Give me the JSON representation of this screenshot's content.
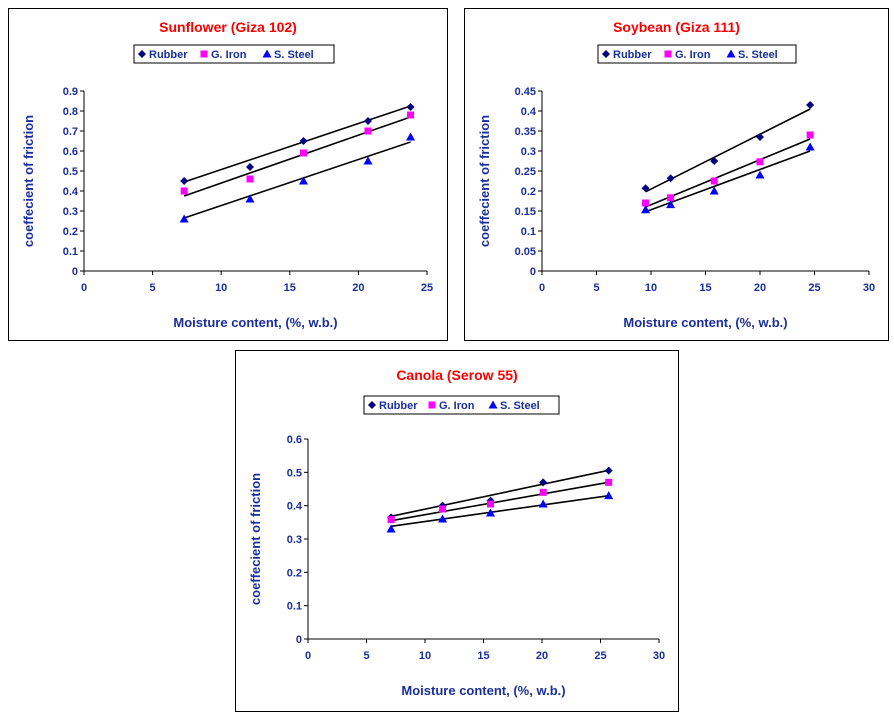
{
  "colors": {
    "rubber": "#000080",
    "iron": "#ff00ff",
    "steel": "#0000ff",
    "title": "#ff0000",
    "axis": "#1a2f9c",
    "fit": "#000000"
  },
  "chart_data": [
    {
      "type": "scatter",
      "title": "Sunflower (Giza 102)",
      "xlabel": "Moisture content, (%, w.b.)",
      "ylabel": "coeffecient of friction",
      "xlim": [
        0,
        25
      ],
      "ylim": [
        0,
        0.9
      ],
      "xticks": [
        "0",
        "5",
        "10",
        "15",
        "20",
        "25"
      ],
      "yticks": [
        "0",
        "0.1",
        "0.2",
        "0.3",
        "0.4",
        "0.5",
        "0.6",
        "0.7",
        "0.8",
        "0.9"
      ],
      "series": [
        {
          "name": "Rubber",
          "x": [
            7.3,
            12.1,
            16.0,
            20.7,
            23.8
          ],
          "y": [
            0.45,
            0.52,
            0.65,
            0.75,
            0.82
          ],
          "fit": [
            [
              7.3,
              0.445
            ],
            [
              23.8,
              0.825
            ]
          ]
        },
        {
          "name": "G. Iron",
          "x": [
            7.3,
            12.1,
            16.0,
            20.7,
            23.8
          ],
          "y": [
            0.4,
            0.46,
            0.59,
            0.7,
            0.78
          ],
          "fit": [
            [
              7.3,
              0.375
            ],
            [
              23.8,
              0.77
            ]
          ]
        },
        {
          "name": "S. Steel",
          "x": [
            7.3,
            12.1,
            16.0,
            20.7,
            23.8
          ],
          "y": [
            0.26,
            0.36,
            0.45,
            0.55,
            0.67
          ],
          "fit": [
            [
              7.3,
              0.265
            ],
            [
              23.8,
              0.645
            ]
          ]
        }
      ]
    },
    {
      "type": "scatter",
      "title": "Soybean (Giza 111)",
      "xlabel": "Moisture content, (%, w.b.)",
      "ylabel": "coeffecient of friction",
      "xlim": [
        0,
        30
      ],
      "ylim": [
        0,
        0.45
      ],
      "xticks": [
        "0",
        "5",
        "10",
        "15",
        "20",
        "25",
        "30"
      ],
      "yticks": [
        "0",
        "0.05",
        "0.1",
        "0.15",
        "0.2",
        "0.25",
        "0.3",
        "0.35",
        "0.4",
        "0.45"
      ],
      "series": [
        {
          "name": "Rubber",
          "x": [
            9.5,
            11.8,
            15.8,
            20.0,
            24.6
          ],
          "y": [
            0.207,
            0.232,
            0.275,
            0.335,
            0.415
          ],
          "fit": [
            [
              9.5,
              0.198
            ],
            [
              24.6,
              0.405
            ]
          ]
        },
        {
          "name": "G. Iron",
          "x": [
            9.5,
            11.8,
            15.8,
            20.0,
            24.6
          ],
          "y": [
            0.17,
            0.183,
            0.225,
            0.273,
            0.34
          ],
          "fit": [
            [
              9.5,
              0.16
            ],
            [
              24.6,
              0.33
            ]
          ]
        },
        {
          "name": "S. Steel",
          "x": [
            9.5,
            11.8,
            15.8,
            20.0,
            24.6
          ],
          "y": [
            0.153,
            0.166,
            0.2,
            0.24,
            0.31
          ],
          "fit": [
            [
              9.5,
              0.148
            ],
            [
              24.6,
              0.3
            ]
          ]
        }
      ]
    },
    {
      "type": "scatter",
      "title": "Canola (Serow 55)",
      "xlabel": "Moisture content, (%, w.b.)",
      "ylabel": "coeffecient of friction",
      "xlim": [
        0,
        30
      ],
      "ylim": [
        0,
        0.6
      ],
      "xticks": [
        "0",
        "5",
        "10",
        "15",
        "20",
        "25",
        "30"
      ],
      "yticks": [
        "0",
        "0.1",
        "0.2",
        "0.3",
        "0.4",
        "0.5",
        "0.6"
      ],
      "series": [
        {
          "name": "Rubber",
          "x": [
            7.1,
            11.5,
            15.6,
            20.1,
            25.7
          ],
          "y": [
            0.365,
            0.4,
            0.415,
            0.47,
            0.505
          ],
          "fit": [
            [
              7.1,
              0.368
            ],
            [
              25.7,
              0.506
            ]
          ]
        },
        {
          "name": "G. Iron",
          "x": [
            7.1,
            11.5,
            15.6,
            20.1,
            25.7
          ],
          "y": [
            0.358,
            0.39,
            0.405,
            0.44,
            0.47
          ],
          "fit": [
            [
              7.1,
              0.355
            ],
            [
              25.7,
              0.47
            ]
          ]
        },
        {
          "name": "S. Steel",
          "x": [
            7.1,
            11.5,
            15.6,
            20.1,
            25.7
          ],
          "y": [
            0.33,
            0.36,
            0.378,
            0.405,
            0.43
          ],
          "fit": [
            [
              7.1,
              0.338
            ],
            [
              25.7,
              0.43
            ]
          ]
        }
      ]
    }
  ]
}
